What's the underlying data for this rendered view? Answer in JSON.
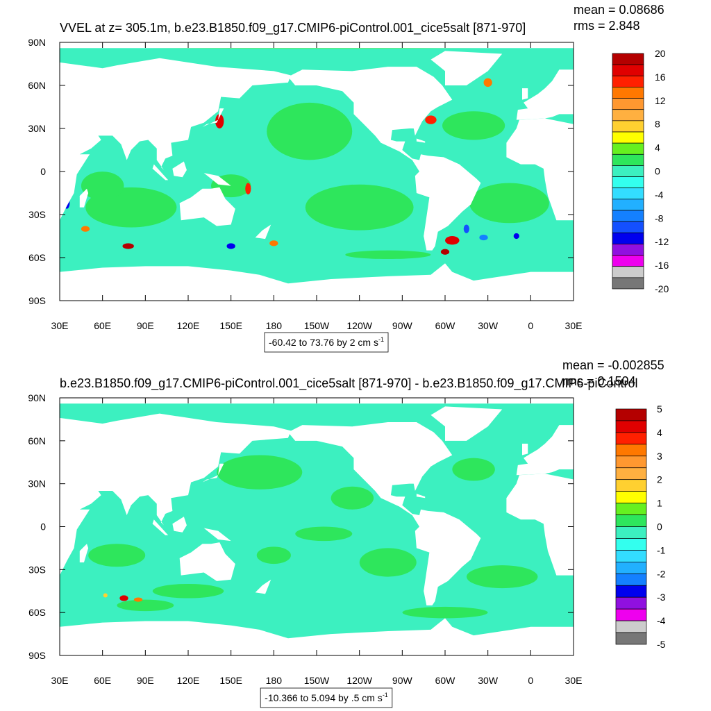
{
  "chart_data": [
    {
      "type": "contour_map",
      "title": "VVEL at z= 305.1m, b.e23.B1850.f09_g17.CMIP6-piControl.001_cice5salt [871-970]",
      "mean_text": "mean = 0.08686",
      "rms_text": "rms = 2.848",
      "contour_info": "-60.42 to 73.76 by 2 cm s",
      "contour_info_exponent": "-1",
      "xlim": [
        30,
        390
      ],
      "ylim": [
        -90,
        90
      ],
      "xticks": [
        {
          "value": 30,
          "label": "30E"
        },
        {
          "value": 60,
          "label": "60E"
        },
        {
          "value": 90,
          "label": "90E"
        },
        {
          "value": 120,
          "label": "120E"
        },
        {
          "value": 150,
          "label": "150E"
        },
        {
          "value": 180,
          "label": "180"
        },
        {
          "value": 210,
          "label": "150W"
        },
        {
          "value": 240,
          "label": "120W"
        },
        {
          "value": 270,
          "label": "90W"
        },
        {
          "value": 300,
          "label": "60W"
        },
        {
          "value": 330,
          "label": "30W"
        },
        {
          "value": 360,
          "label": "0"
        },
        {
          "value": 390,
          "label": "30E"
        }
      ],
      "yticks": [
        {
          "value": 90,
          "label": "90N"
        },
        {
          "value": 60,
          "label": "60N"
        },
        {
          "value": 30,
          "label": "30N"
        },
        0,
        {
          "value": -30,
          "label": "30S"
        },
        {
          "value": -60,
          "label": "60S"
        },
        {
          "value": -90,
          "label": "90S"
        }
      ],
      "colorbar": {
        "labels": [
          20,
          16,
          12,
          8,
          4,
          0,
          -4,
          -8,
          -12,
          -16,
          -20
        ],
        "colors": [
          "#b40000",
          "#e00000",
          "#ff2000",
          "#ff7800",
          "#ff9830",
          "#ffb040",
          "#ffd030",
          "#ffff00",
          "#66f020",
          "#2ee65c",
          "#3cf0c0",
          "#33ffee",
          "#33ddff",
          "#22b0ff",
          "#1480ff",
          "#1450ff",
          "#0000ee",
          "#9010e0",
          "#ee00ee",
          "#cccccc",
          "#777777"
        ]
      }
    },
    {
      "type": "contour_map",
      "title": "b.e23.B1850.f09_g17.CMIP6-piControl.001_cice5salt [871-970] - b.e23.B1850.f09_g17.CMIP6-piControl",
      "mean_text": "mean = -0.002855",
      "rms_text": "rms = 0.1504",
      "contour_info": "-10.366 to 5.094 by .5 cm s",
      "contour_info_exponent": "-1",
      "xlim": [
        30,
        390
      ],
      "ylim": [
        -90,
        90
      ],
      "xticks": [
        {
          "value": 30,
          "label": "30E"
        },
        {
          "value": 60,
          "label": "60E"
        },
        {
          "value": 90,
          "label": "90E"
        },
        {
          "value": 120,
          "label": "120E"
        },
        {
          "value": 150,
          "label": "150E"
        },
        {
          "value": 180,
          "label": "180"
        },
        {
          "value": 210,
          "label": "150W"
        },
        {
          "value": 240,
          "label": "120W"
        },
        {
          "value": 270,
          "label": "90W"
        },
        {
          "value": 300,
          "label": "60W"
        },
        {
          "value": 330,
          "label": "30W"
        },
        {
          "value": 360,
          "label": "0"
        },
        {
          "value": 390,
          "label": "30E"
        }
      ],
      "yticks": [
        {
          "value": 90,
          "label": "90N"
        },
        {
          "value": 60,
          "label": "60N"
        },
        {
          "value": 30,
          "label": "30N"
        },
        0,
        {
          "value": -30,
          "label": "30S"
        },
        {
          "value": -60,
          "label": "60S"
        },
        {
          "value": -90,
          "label": "90S"
        }
      ],
      "colorbar": {
        "labels": [
          5,
          4,
          3,
          2,
          1,
          0,
          -1,
          -2,
          -3,
          -4,
          -5
        ],
        "colors": [
          "#b40000",
          "#e00000",
          "#ff2000",
          "#ff7800",
          "#ff9830",
          "#ffb040",
          "#ffd030",
          "#ffff00",
          "#66f020",
          "#2ee65c",
          "#3cf0c0",
          "#33ffee",
          "#33ddff",
          "#22b0ff",
          "#1480ff",
          "#0000ee",
          "#9010e0",
          "#ee00ee",
          "#cccccc",
          "#777777"
        ]
      }
    }
  ]
}
